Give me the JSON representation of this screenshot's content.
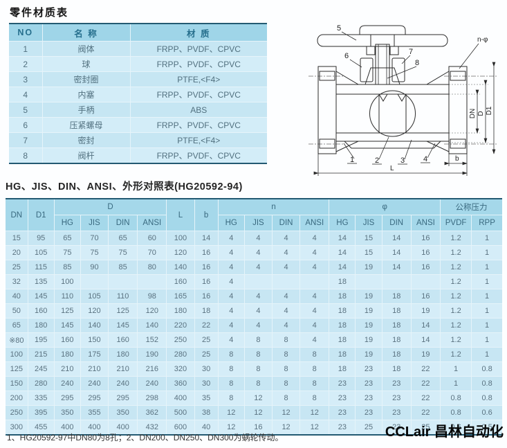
{
  "parts_table": {
    "title": "零件材质表",
    "headers": [
      "NO",
      "名 称",
      "材 质"
    ],
    "rows": [
      [
        "1",
        "阀体",
        "FRPP、PVDF、CPVC"
      ],
      [
        "2",
        "球",
        "FRPP、PVDF、CPVC"
      ],
      [
        "3",
        "密封圈",
        "PTFE,<F4>"
      ],
      [
        "4",
        "内塞",
        "FRPP、PVDF、CPVC"
      ],
      [
        "5",
        "手柄",
        "ABS"
      ],
      [
        "6",
        "压紧螺母",
        "FRPP、PVDF、CPVC"
      ],
      [
        "7",
        "密封",
        "PTFE,<F4>"
      ],
      [
        "8",
        "阀杆",
        "FRPP、PVDF、CPVC"
      ]
    ]
  },
  "diagram": {
    "part_labels": [
      "1",
      "2",
      "3",
      "4",
      "5",
      "6",
      "7",
      "8"
    ],
    "dims": {
      "n_phi": "n-φ",
      "dn": "DN",
      "d": "D",
      "d1": "D1",
      "l": "L",
      "b": "b"
    }
  },
  "dim_table": {
    "title": "HG、JIS、DIN、ANSI、外形对照表(HG20592-94)",
    "col_dn": "DN",
    "col_d1": "D1",
    "col_d": "D",
    "col_l": "L",
    "col_b": "b",
    "col_n": "n",
    "col_phi": "φ",
    "col_pressure": "公称压力",
    "sub_headers": [
      "HG",
      "JIS",
      "DIN",
      "ANSI"
    ],
    "pressure_sub": [
      "PVDF",
      "RPP"
    ],
    "rows": [
      [
        "15",
        "95",
        "65",
        "70",
        "65",
        "60",
        "100",
        "14",
        "4",
        "4",
        "4",
        "4",
        "14",
        "15",
        "14",
        "16",
        "1.2",
        "1"
      ],
      [
        "20",
        "105",
        "75",
        "75",
        "75",
        "70",
        "120",
        "16",
        "4",
        "4",
        "4",
        "4",
        "14",
        "15",
        "14",
        "16",
        "1.2",
        "1"
      ],
      [
        "25",
        "115",
        "85",
        "90",
        "85",
        "80",
        "140",
        "16",
        "4",
        "4",
        "4",
        "4",
        "14",
        "19",
        "14",
        "16",
        "1.2",
        "1"
      ],
      [
        "32",
        "135",
        "100",
        "",
        "",
        "",
        "160",
        "16",
        "4",
        "",
        "",
        "",
        "18",
        "",
        "",
        "",
        "1.2",
        "1"
      ],
      [
        "40",
        "145",
        "110",
        "105",
        "110",
        "98",
        "165",
        "16",
        "4",
        "4",
        "4",
        "4",
        "18",
        "19",
        "18",
        "16",
        "1.2",
        "1"
      ],
      [
        "50",
        "160",
        "125",
        "120",
        "125",
        "120",
        "180",
        "18",
        "4",
        "4",
        "4",
        "4",
        "18",
        "19",
        "18",
        "19",
        "1.2",
        "1"
      ],
      [
        "65",
        "180",
        "145",
        "140",
        "145",
        "140",
        "220",
        "22",
        "4",
        "4",
        "4",
        "4",
        "18",
        "19",
        "18",
        "14",
        "1.2",
        "1"
      ],
      [
        "※80",
        "195",
        "160",
        "150",
        "160",
        "152",
        "250",
        "25",
        "4",
        "8",
        "8",
        "4",
        "18",
        "19",
        "18",
        "14",
        "1.2",
        "1"
      ],
      [
        "100",
        "215",
        "180",
        "175",
        "180",
        "190",
        "280",
        "25",
        "8",
        "8",
        "8",
        "8",
        "18",
        "19",
        "18",
        "19",
        "1.2",
        "1"
      ],
      [
        "125",
        "245",
        "210",
        "210",
        "210",
        "216",
        "320",
        "30",
        "8",
        "8",
        "8",
        "8",
        "18",
        "23",
        "18",
        "22",
        "1",
        "0.8"
      ],
      [
        "150",
        "280",
        "240",
        "240",
        "240",
        "240",
        "360",
        "30",
        "8",
        "8",
        "8",
        "8",
        "23",
        "23",
        "23",
        "22",
        "1",
        "0.8"
      ],
      [
        "200",
        "335",
        "295",
        "295",
        "295",
        "298",
        "400",
        "35",
        "8",
        "12",
        "8",
        "8",
        "23",
        "23",
        "23",
        "22",
        "0.8",
        "0.8"
      ],
      [
        "250",
        "395",
        "350",
        "355",
        "350",
        "362",
        "500",
        "38",
        "12",
        "12",
        "12",
        "12",
        "23",
        "23",
        "23",
        "22",
        "0.8",
        "0.6"
      ],
      [
        "300",
        "455",
        "400",
        "400",
        "400",
        "432",
        "600",
        "40",
        "12",
        "16",
        "12",
        "12",
        "23",
        "25",
        "23",
        "25",
        "0.6",
        "0.5"
      ]
    ]
  },
  "footnote": "1、HG20592-97中DN80为8孔；2、DN200、DN250、DN300为蜗轮传动。",
  "logo": "CCLair 昌林自动化",
  "colors": {
    "border_dark": "#235a72",
    "header_bg": "#a5d8ea",
    "row_odd": "#c7e6f3",
    "row_even": "#d5edf8",
    "header_text": "#39697f",
    "body_text": "#5a7280"
  }
}
